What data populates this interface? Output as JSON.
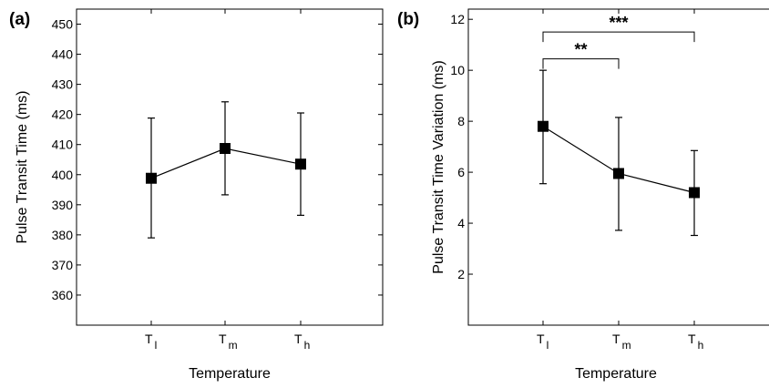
{
  "chart_data": [
    {
      "type": "line",
      "panel": "(a)",
      "xlabel": "Temperature",
      "ylabel": "Pulse Transit Time (ms)",
      "categories": [
        {
          "main": "T",
          "sub": "l"
        },
        {
          "main": "T",
          "sub": "m"
        },
        {
          "main": "T",
          "sub": "h"
        }
      ],
      "values": [
        398.8,
        408.7,
        403.5
      ],
      "errors": [
        {
          "low": 379,
          "high": 418.8
        },
        {
          "low": 393.3,
          "high": 424.2
        },
        {
          "low": 386.5,
          "high": 420.5
        }
      ],
      "ylim": [
        350,
        455
      ],
      "yticks": [
        "360",
        "370",
        "380",
        "390",
        "400",
        "410",
        "420",
        "430",
        "440",
        "450"
      ],
      "annotations": []
    },
    {
      "type": "line",
      "panel": "(b)",
      "xlabel": "Temperature",
      "ylabel": "Pulse Transit Time Variation (ms)",
      "categories": [
        {
          "main": "T",
          "sub": "l"
        },
        {
          "main": "T",
          "sub": "m"
        },
        {
          "main": "T",
          "sub": "h"
        }
      ],
      "values": [
        7.8,
        5.95,
        5.2
      ],
      "errors": [
        {
          "low": 5.55,
          "high": 10.0
        },
        {
          "low": 3.72,
          "high": 8.15
        },
        {
          "low": 3.52,
          "high": 6.85
        }
      ],
      "ylim": [
        0,
        12.4
      ],
      "yticks": [
        "2",
        "4",
        "6",
        "8",
        "10",
        "12"
      ],
      "annotations": [
        {
          "from": 0,
          "to": 1,
          "y": 10.45,
          "label": "**"
        },
        {
          "from": 0,
          "to": 2,
          "y": 11.5,
          "label": "***"
        }
      ]
    }
  ]
}
